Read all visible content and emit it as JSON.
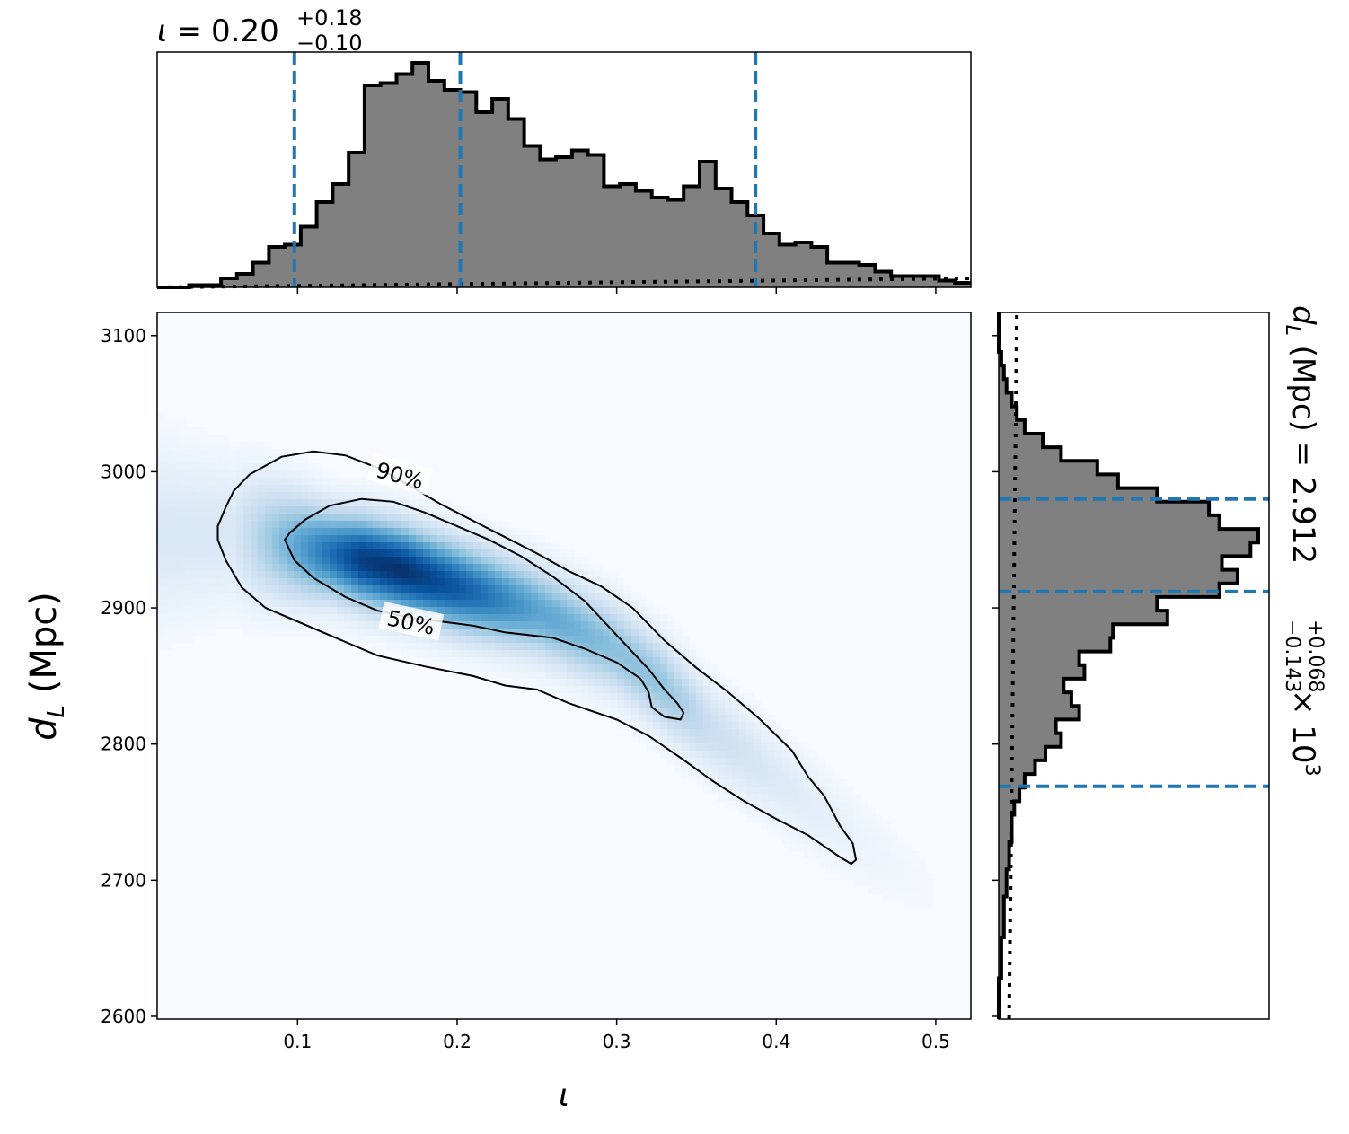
{
  "chart_data": {
    "type": "heatmap",
    "description": "Joint posterior of inclination iota and luminosity distance d_L with marginal histograms",
    "title_top": {
      "symbol": "ι",
      "equals": "=",
      "median": "0.20",
      "plus": "+0.18",
      "minus": "−0.10"
    },
    "title_right": {
      "prefix": "d",
      "sub": "L",
      "middle": " (Mpc) = 2.912",
      "plus": "+0.068",
      "minus": "−0.143",
      "times": " × 10",
      "exp": "3"
    },
    "xlabel": "ι",
    "ylabel": {
      "main": "d",
      "sub": "L",
      "rest": " (Mpc)"
    },
    "xlim": [
      0.012,
      0.522
    ],
    "ylim": [
      2598,
      3117
    ],
    "xticks": [
      0.1,
      0.2,
      0.3,
      0.4,
      0.5
    ],
    "xtick_labels": [
      "0.1",
      "0.2",
      "0.3",
      "0.4",
      "0.5"
    ],
    "yticks": [
      2600,
      2700,
      2800,
      2900,
      3000,
      3100
    ],
    "ytick_labels": [
      "2600",
      "2700",
      "2800",
      "2900",
      "3000",
      "3100"
    ],
    "colormap": "Blues",
    "contour_levels": [
      "90%",
      "50%"
    ],
    "contour_90": [
      [
        0.05,
        2960
      ],
      [
        0.05,
        2950
      ],
      [
        0.055,
        2935
      ],
      [
        0.065,
        2915
      ],
      [
        0.08,
        2900
      ],
      [
        0.1,
        2890
      ],
      [
        0.13,
        2875
      ],
      [
        0.15,
        2865
      ],
      [
        0.18,
        2857
      ],
      [
        0.21,
        2850
      ],
      [
        0.23,
        2843
      ],
      [
        0.25,
        2840
      ],
      [
        0.27,
        2830
      ],
      [
        0.3,
        2818
      ],
      [
        0.32,
        2806
      ],
      [
        0.34,
        2790
      ],
      [
        0.36,
        2773
      ],
      [
        0.38,
        2758
      ],
      [
        0.4,
        2745
      ],
      [
        0.42,
        2733
      ],
      [
        0.44,
        2717
      ],
      [
        0.447,
        2712
      ],
      [
        0.45,
        2715
      ],
      [
        0.448,
        2727
      ],
      [
        0.44,
        2740
      ],
      [
        0.43,
        2762
      ],
      [
        0.42,
        2776
      ],
      [
        0.41,
        2795
      ],
      [
        0.39,
        2818
      ],
      [
        0.37,
        2838
      ],
      [
        0.35,
        2856
      ],
      [
        0.33,
        2876
      ],
      [
        0.31,
        2900
      ],
      [
        0.29,
        2916
      ],
      [
        0.27,
        2927
      ],
      [
        0.25,
        2940
      ],
      [
        0.23,
        2952
      ],
      [
        0.21,
        2964
      ],
      [
        0.19,
        2976
      ],
      [
        0.17,
        2990
      ],
      [
        0.15,
        3003
      ],
      [
        0.13,
        3012
      ],
      [
        0.11,
        3015
      ],
      [
        0.09,
        3011
      ],
      [
        0.07,
        2998
      ],
      [
        0.06,
        2986
      ],
      [
        0.055,
        2974
      ],
      [
        0.05,
        2960
      ]
    ],
    "contour_50": [
      [
        0.092,
        2950
      ],
      [
        0.098,
        2935
      ],
      [
        0.11,
        2922
      ],
      [
        0.13,
        2908
      ],
      [
        0.15,
        2898
      ],
      [
        0.17,
        2893
      ],
      [
        0.19,
        2890
      ],
      [
        0.21,
        2887
      ],
      [
        0.23,
        2882
      ],
      [
        0.26,
        2878
      ],
      [
        0.28,
        2870
      ],
      [
        0.3,
        2860
      ],
      [
        0.315,
        2848
      ],
      [
        0.32,
        2838
      ],
      [
        0.322,
        2827
      ],
      [
        0.33,
        2820
      ],
      [
        0.34,
        2818
      ],
      [
        0.342,
        2823
      ],
      [
        0.338,
        2830
      ],
      [
        0.33,
        2840
      ],
      [
        0.32,
        2855
      ],
      [
        0.3,
        2880
      ],
      [
        0.28,
        2905
      ],
      [
        0.26,
        2923
      ],
      [
        0.24,
        2938
      ],
      [
        0.22,
        2950
      ],
      [
        0.2,
        2960
      ],
      [
        0.18,
        2970
      ],
      [
        0.16,
        2978
      ],
      [
        0.14,
        2980
      ],
      [
        0.12,
        2975
      ],
      [
        0.105,
        2965
      ],
      [
        0.095,
        2955
      ],
      [
        0.092,
        2950
      ]
    ],
    "density_peak": {
      "x": 0.165,
      "y": 2928
    },
    "hist_top": {
      "bin_edges_start": 0.012,
      "bin_width": 0.01,
      "heights": [
        0.0,
        0.0,
        0.01,
        0.01,
        0.04,
        0.06,
        0.11,
        0.18,
        0.19,
        0.27,
        0.38,
        0.46,
        0.6,
        0.9,
        0.91,
        0.95,
        1.0,
        0.92,
        0.88,
        0.87,
        0.78,
        0.84,
        0.75,
        0.63,
        0.57,
        0.58,
        0.61,
        0.59,
        0.45,
        0.46,
        0.43,
        0.4,
        0.39,
        0.45,
        0.56,
        0.44,
        0.38,
        0.32,
        0.24,
        0.19,
        0.2,
        0.18,
        0.11,
        0.11,
        0.1,
        0.07,
        0.05,
        0.05,
        0.05,
        0.03,
        0.02
      ],
      "credible_lines": [
        0.098,
        0.202,
        0.387
      ],
      "prior_start": 0.0,
      "prior_end": 0.04
    },
    "hist_right": {
      "bin_edges_start": 2598,
      "bin_width": 10,
      "heights": [
        0.0,
        0.0,
        0.0,
        0.01,
        0.01,
        0.01,
        0.02,
        0.02,
        0.02,
        0.03,
        0.03,
        0.04,
        0.04,
        0.05,
        0.05,
        0.06,
        0.08,
        0.1,
        0.14,
        0.18,
        0.24,
        0.22,
        0.31,
        0.28,
        0.25,
        0.33,
        0.31,
        0.43,
        0.44,
        0.65,
        0.61,
        0.85,
        0.92,
        0.86,
        0.97,
        1.0,
        0.85,
        0.81,
        0.61,
        0.46,
        0.38,
        0.24,
        0.17,
        0.1,
        0.07,
        0.05,
        0.03,
        0.02,
        0.01,
        0.0,
        0.0,
        0.0
      ],
      "credible_lines": [
        2769,
        2912,
        2980
      ],
      "prior_start": 0.07,
      "prior_end": 0.04
    }
  }
}
